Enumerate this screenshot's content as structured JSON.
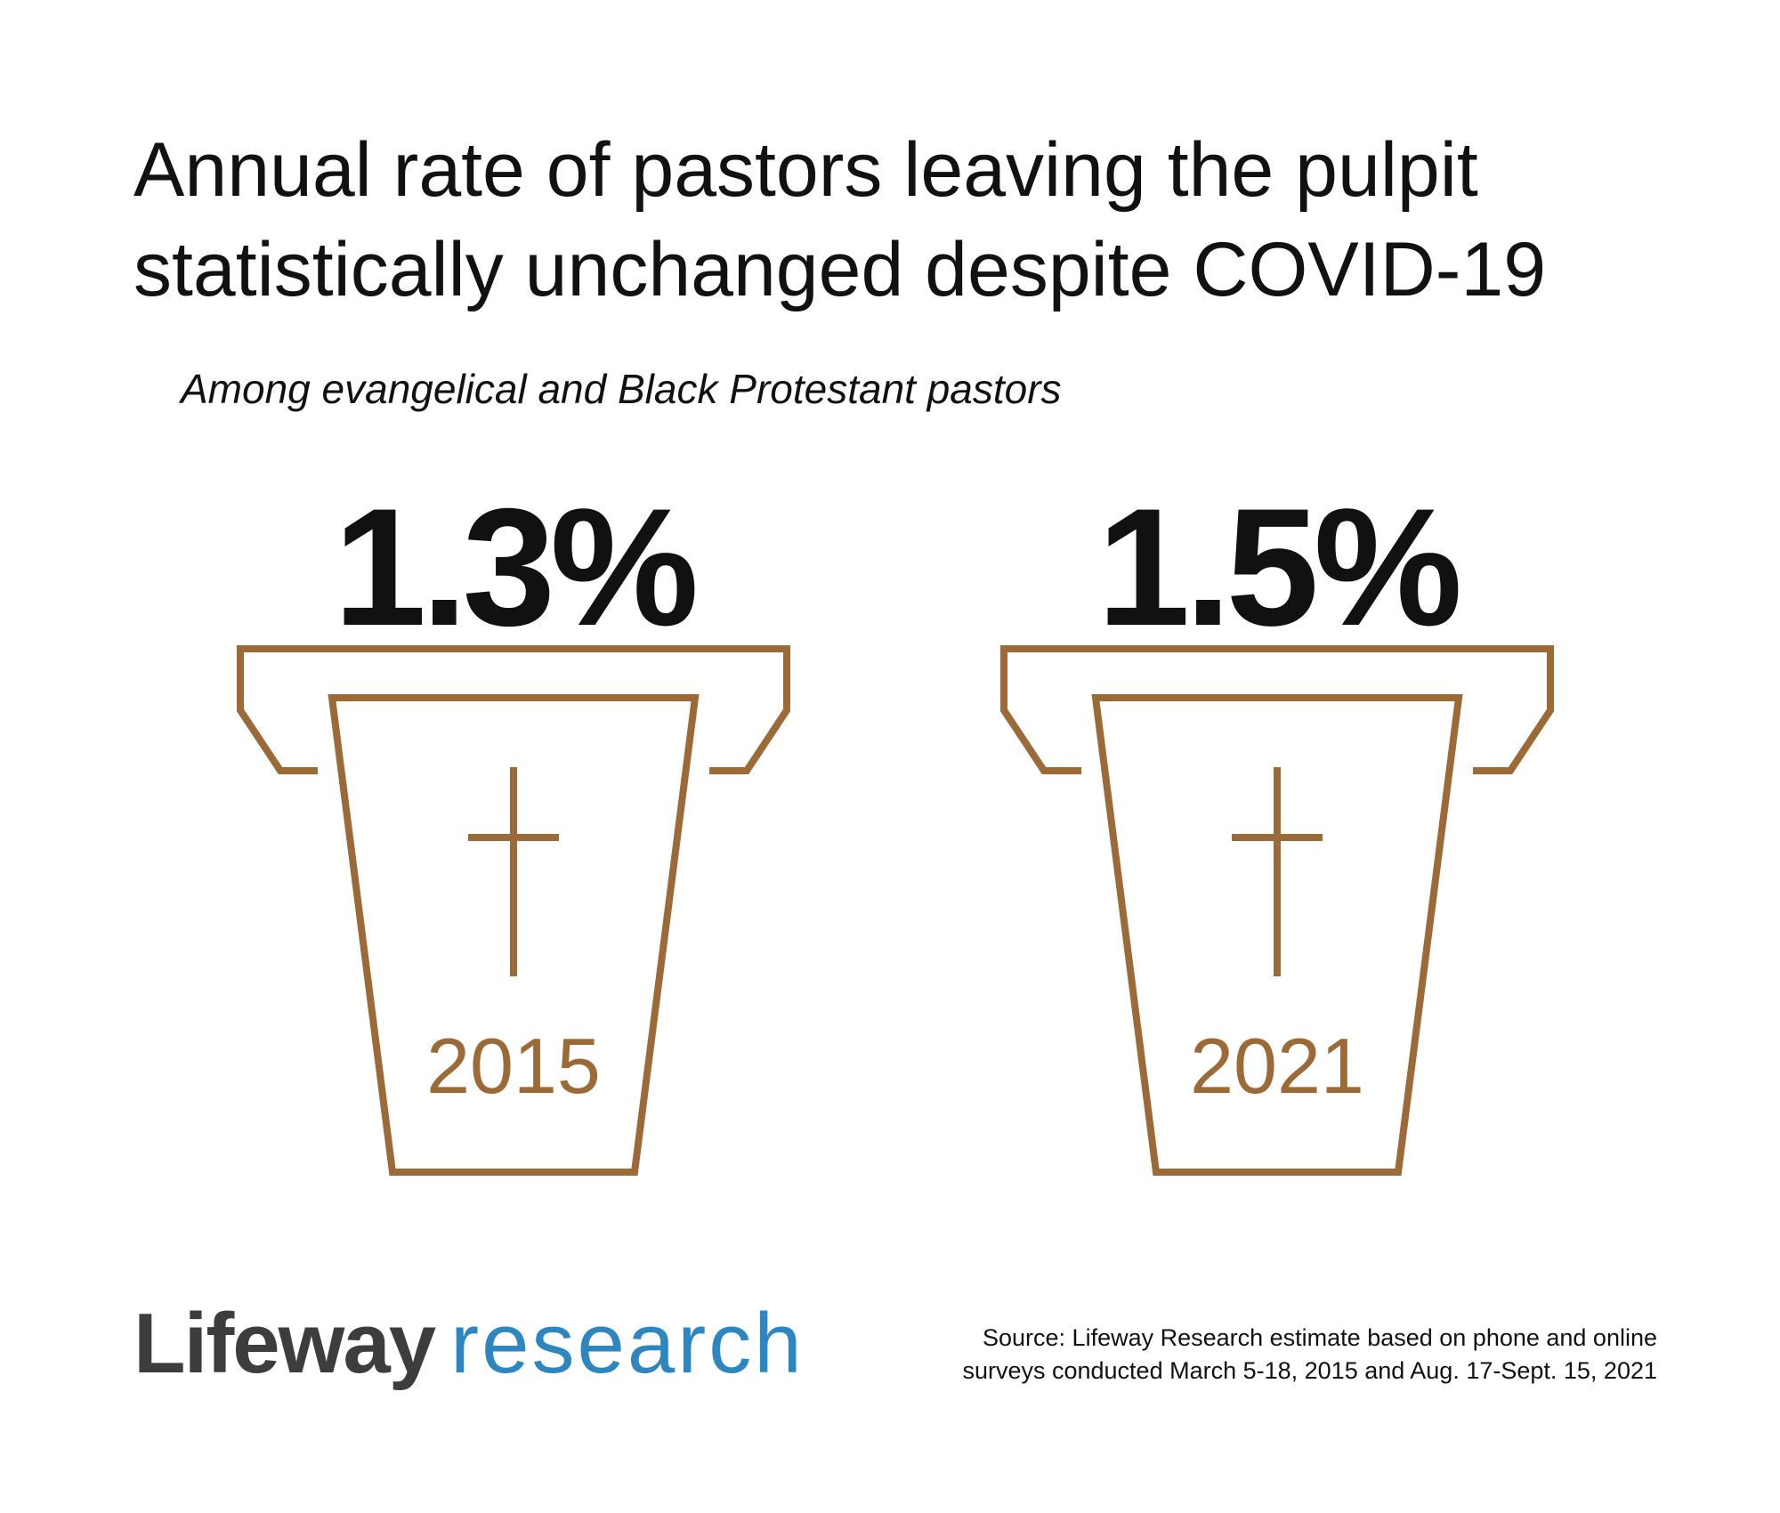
{
  "title_line1": "Annual rate of pastors leaving the pulpit",
  "title_line2": "statistically unchanged despite COVID-19",
  "subtitle": "Among evangelical and Black Protestant pastors",
  "logo": {
    "brand": "Lifeway",
    "sub": "research"
  },
  "source_line1": "Source: Lifeway Research estimate based on phone and online",
  "source_line2": "surveys conducted March 5-18, 2015 and Aug. 17-Sept. 15, 2021",
  "colors": {
    "accent": "#9b6a37",
    "text": "#111111",
    "logo_gray": "#3d3d3f",
    "logo_blue": "#2e86c1"
  },
  "chart_data": {
    "type": "bar",
    "categories": [
      "2015",
      "2021"
    ],
    "values": [
      1.3,
      1.5
    ],
    "value_labels": [
      "1.3%",
      "1.5%"
    ],
    "unit": "%",
    "icon": "pulpit-with-cross-icon"
  }
}
